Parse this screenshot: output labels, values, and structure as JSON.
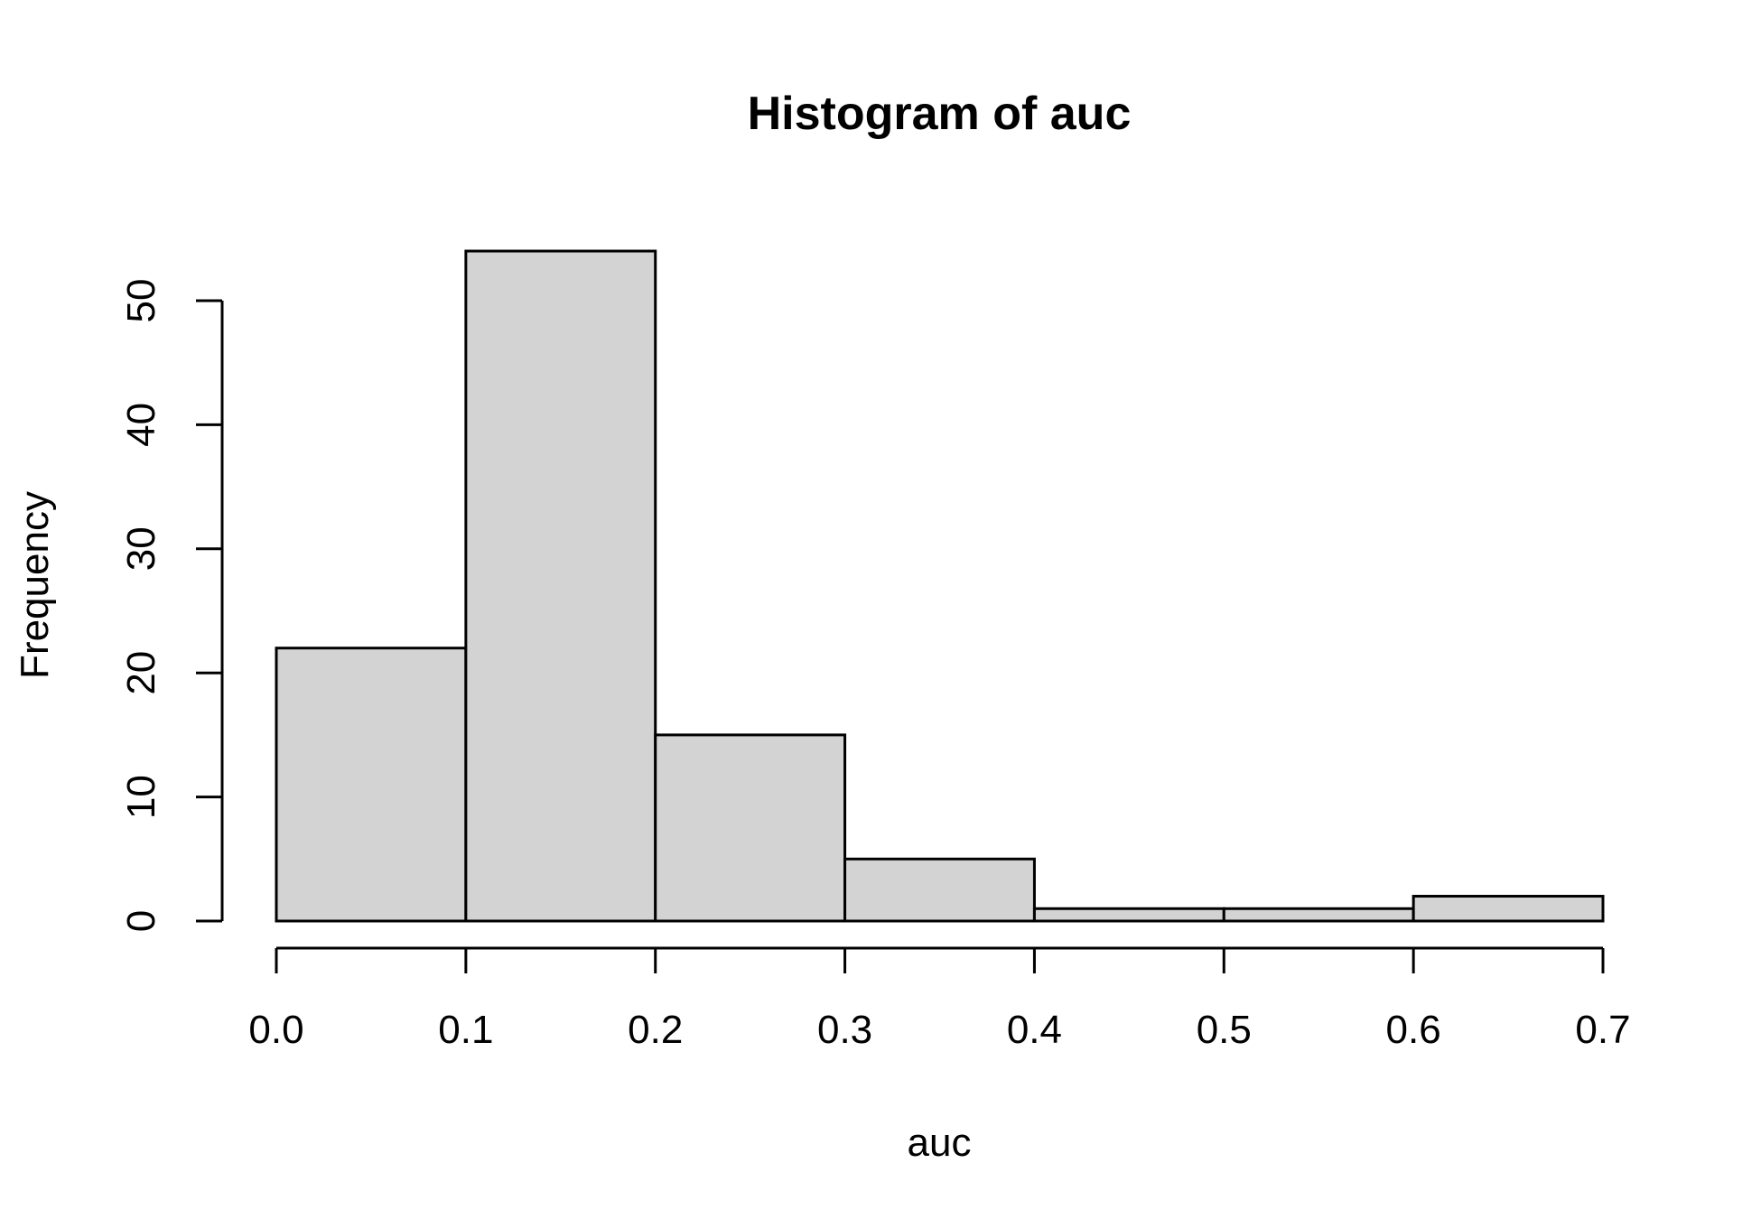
{
  "chart_data": {
    "type": "bar",
    "title": "Histogram of auc",
    "xlabel": "auc",
    "ylabel": "Frequency",
    "bins": [
      {
        "from": 0.0,
        "to": 0.1,
        "count": 22
      },
      {
        "from": 0.1,
        "to": 0.2,
        "count": 54
      },
      {
        "from": 0.2,
        "to": 0.3,
        "count": 15
      },
      {
        "from": 0.3,
        "to": 0.4,
        "count": 5
      },
      {
        "from": 0.4,
        "to": 0.5,
        "count": 1
      },
      {
        "from": 0.5,
        "to": 0.6,
        "count": 1
      },
      {
        "from": 0.6,
        "to": 0.7,
        "count": 2
      }
    ],
    "xlim": [
      0.0,
      0.7
    ],
    "ylim": [
      0,
      54
    ],
    "x_ticks": [
      0.0,
      0.1,
      0.2,
      0.3,
      0.4,
      0.5,
      0.6,
      0.7
    ],
    "x_tick_labels": [
      "0.0",
      "0.1",
      "0.2",
      "0.3",
      "0.4",
      "0.5",
      "0.6",
      "0.7"
    ],
    "y_ticks": [
      0,
      10,
      20,
      30,
      40,
      50
    ],
    "y_tick_labels": [
      "0",
      "10",
      "20",
      "30",
      "40",
      "50"
    ],
    "bar_fill": "#d3d3d3",
    "bar_stroke": "#000000",
    "grid": false,
    "legend": "none"
  }
}
